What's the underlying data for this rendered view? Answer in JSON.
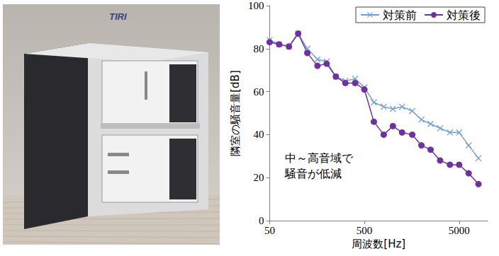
{
  "photo": {
    "logo": "TIRI"
  },
  "chart_data": {
    "type": "line",
    "x_label": "周波数[Hz]",
    "y_label": "隣室の騒音量[dB]",
    "log": "x",
    "xlim": [
      50,
      10000
    ],
    "xticks": [
      50,
      500,
      5000
    ],
    "ylim": [
      0,
      100
    ],
    "yticks": [
      0,
      20,
      40,
      60,
      80,
      100
    ],
    "grid": false,
    "legend": "upper right",
    "x": [
      50,
      63,
      80,
      100,
      125,
      160,
      200,
      250,
      315,
      400,
      500,
      630,
      800,
      1000,
      1250,
      1600,
      2000,
      2500,
      3150,
      4000,
      5000,
      6300,
      8000
    ],
    "series": [
      {
        "name": "対策前",
        "color": "#6f9fd8",
        "marker": "x",
        "line_style": "solid",
        "values": [
          84,
          82,
          81,
          87,
          80,
          75,
          74,
          67,
          65,
          66,
          62,
          55,
          53,
          52,
          53,
          51,
          47,
          45,
          43,
          41,
          41,
          35,
          29
        ]
      },
      {
        "name": "対策後",
        "color": "#7030a0",
        "marker": "o",
        "line_style": "solid",
        "values": [
          83,
          82,
          81,
          87,
          78,
          72,
          73,
          67,
          64,
          64,
          61,
          46,
          40,
          44,
          41,
          40,
          35,
          33,
          28,
          26,
          26,
          22,
          17
        ]
      }
    ],
    "annotations": [
      {
        "text": [
          "中～高音域で",
          "騒音が低減"
        ]
      }
    ]
  }
}
